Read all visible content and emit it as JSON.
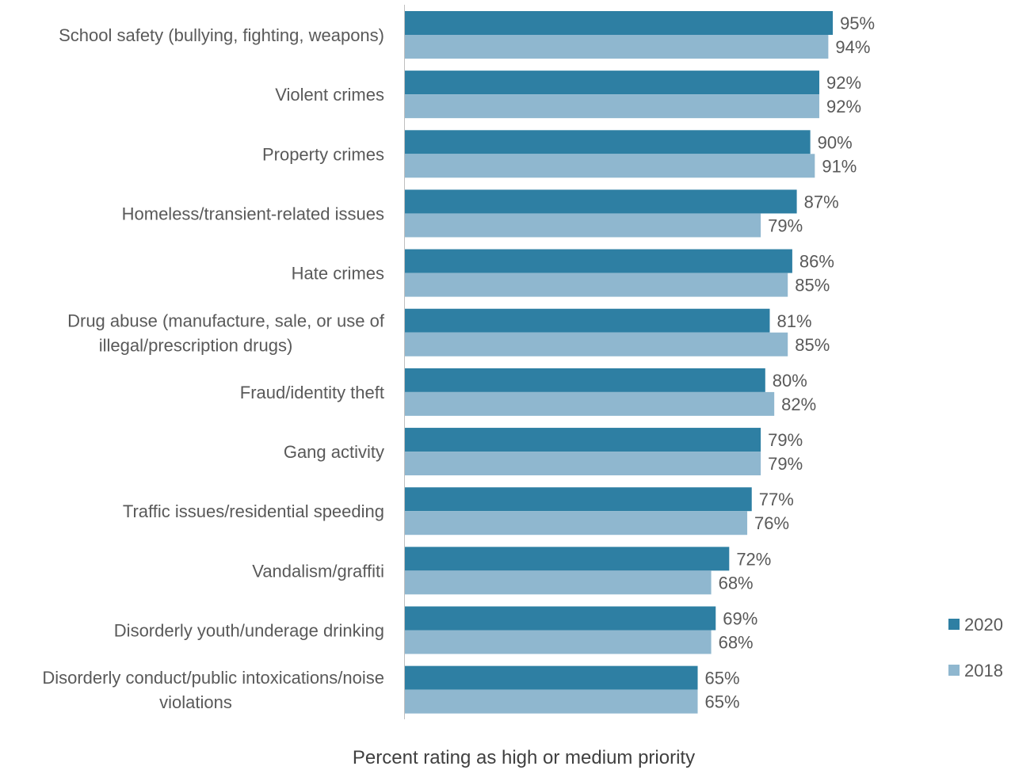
{
  "chart_data": {
    "type": "bar",
    "orientation": "horizontal",
    "categories": [
      [
        "School safety (bullying, fighting, weapons)"
      ],
      [
        "Violent crimes"
      ],
      [
        "Property crimes"
      ],
      [
        "Homeless/transient-related issues"
      ],
      [
        "Hate crimes"
      ],
      [
        "Drug abuse (manufacture, sale, or use of",
        "illegal/prescription drugs)"
      ],
      [
        "Fraud/identity theft"
      ],
      [
        "Gang activity"
      ],
      [
        "Traffic issues/residential speeding"
      ],
      [
        "Vandalism/graffiti"
      ],
      [
        "Disorderly youth/underage drinking"
      ],
      [
        "Disorderly conduct/public intoxications/noise",
        "violations"
      ]
    ],
    "series": [
      {
        "name": "2020",
        "color": "#2e7fa3",
        "values": [
          95,
          92,
          90,
          87,
          86,
          81,
          80,
          79,
          77,
          72,
          69,
          65
        ],
        "labels": [
          "95%",
          "92%",
          "90%",
          "87%",
          "86%",
          "81%",
          "80%",
          "79%",
          "77%",
          "72%",
          "69%",
          "65%"
        ]
      },
      {
        "name": "2018",
        "color": "#8fb7cf",
        "values": [
          94,
          92,
          91,
          79,
          85,
          85,
          82,
          79,
          76,
          68,
          68,
          65
        ],
        "labels": [
          "94%",
          "92%",
          "91%",
          "79%",
          "85%",
          "85%",
          "82%",
          "79%",
          "76%",
          "68%",
          "68%",
          "65%"
        ]
      }
    ],
    "title": "",
    "xlabel": "Percent rating as high or medium priority",
    "ylabel": "",
    "xlim": [
      0,
      100
    ],
    "grid": false,
    "legend_position": "bottom-right",
    "axis_line_color": "#bfbfbf"
  }
}
